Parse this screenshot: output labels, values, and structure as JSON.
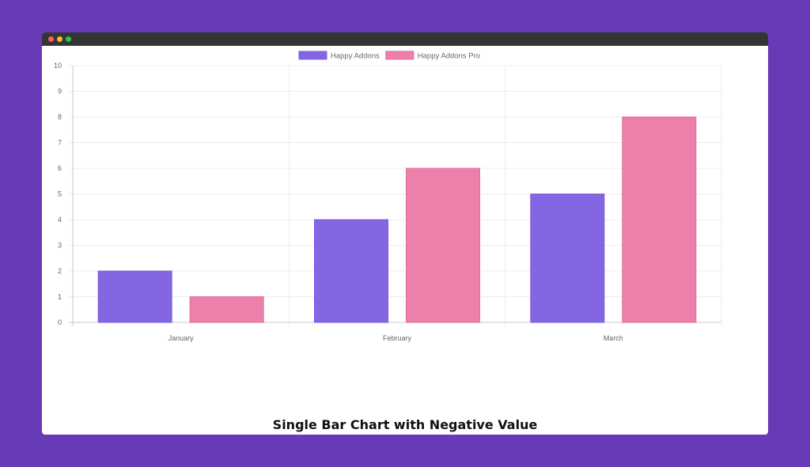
{
  "window": {
    "buttons": [
      {
        "name": "close",
        "color": "#ff5f57"
      },
      {
        "name": "minimize",
        "color": "#febc2e"
      },
      {
        "name": "maximize",
        "color": "#28c840"
      }
    ]
  },
  "caption": "Single Bar Chart with Negative Value",
  "chart_data": {
    "type": "bar",
    "categories": [
      "January",
      "February",
      "March"
    ],
    "series": [
      {
        "name": "Happy Addons",
        "values": [
          2,
          4,
          5
        ],
        "fill": "#8566e2",
        "stroke": "#7a5ae0"
      },
      {
        "name": "Happy Addons Pro",
        "values": [
          1,
          6,
          8
        ],
        "fill": "#ec80ab",
        "stroke": "#e06a9a"
      }
    ],
    "ylim": [
      0,
      10
    ],
    "yticks": [
      0,
      1,
      2,
      3,
      4,
      5,
      6,
      7,
      8,
      9,
      10
    ],
    "grid": true,
    "legend": "top-center",
    "xlabel": "",
    "ylabel": ""
  }
}
